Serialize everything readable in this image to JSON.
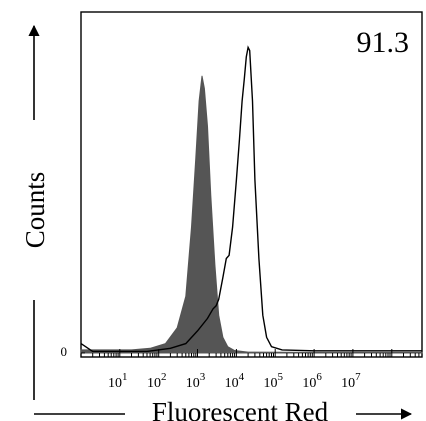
{
  "chart_data": {
    "type": "area",
    "title": "",
    "xlabel": "Fluorescent Red",
    "ylabel": "Counts",
    "x_scale": "log",
    "xlim": [
      1,
      600000000
    ],
    "ylim": [
      0,
      100
    ],
    "x_ticks": [
      {
        "value": 10,
        "base": "10",
        "exp": "1"
      },
      {
        "value": 100,
        "base": "10",
        "exp": "2"
      },
      {
        "value": 1000,
        "base": "10",
        "exp": "3"
      },
      {
        "value": 10000,
        "base": "10",
        "exp": "4"
      },
      {
        "value": 100000,
        "base": "10",
        "exp": "5"
      },
      {
        "value": 1000000,
        "base": "10",
        "exp": "6"
      },
      {
        "value": 10000000,
        "base": "10",
        "exp": "7"
      }
    ],
    "y_ticks": [
      {
        "value": 0,
        "label": "0"
      }
    ],
    "annotation": "91.3",
    "grid": false,
    "legend": "none",
    "series": [
      {
        "style": "filled",
        "color": "#555555",
        "points": [
          [
            1,
            1
          ],
          [
            20,
            1
          ],
          [
            60,
            1.5
          ],
          [
            150,
            3
          ],
          [
            300,
            8
          ],
          [
            500,
            18
          ],
          [
            700,
            40
          ],
          [
            900,
            62
          ],
          [
            1100,
            80
          ],
          [
            1300,
            88
          ],
          [
            1500,
            84
          ],
          [
            1800,
            72
          ],
          [
            2200,
            50
          ],
          [
            2800,
            28
          ],
          [
            3500,
            12
          ],
          [
            4500,
            5
          ],
          [
            6000,
            2
          ],
          [
            9000,
            0.8
          ],
          [
            20000,
            0.3
          ],
          [
            1000000,
            0.2
          ],
          [
            600000000,
            0.2
          ]
        ]
      },
      {
        "style": "line",
        "color": "#000000",
        "points": [
          [
            1,
            3
          ],
          [
            2,
            0.5
          ],
          [
            50,
            0.5
          ],
          [
            200,
            1.5
          ],
          [
            500,
            3
          ],
          [
            1000,
            7
          ],
          [
            1800,
            11
          ],
          [
            2500,
            14
          ],
          [
            3000,
            15
          ],
          [
            3500,
            17
          ],
          [
            4500,
            24
          ],
          [
            5500,
            30
          ],
          [
            6500,
            31
          ],
          [
            8000,
            40
          ],
          [
            10000,
            55
          ],
          [
            12000,
            68
          ],
          [
            14000,
            80
          ],
          [
            16000,
            87
          ],
          [
            18000,
            94
          ],
          [
            20000,
            97
          ],
          [
            22000,
            96
          ],
          [
            26000,
            80
          ],
          [
            30000,
            55
          ],
          [
            38000,
            30
          ],
          [
            48000,
            12
          ],
          [
            60000,
            5
          ],
          [
            80000,
            2
          ],
          [
            150000,
            1
          ],
          [
            1000000,
            0.7
          ],
          [
            600000000,
            0.7
          ]
        ]
      }
    ]
  }
}
